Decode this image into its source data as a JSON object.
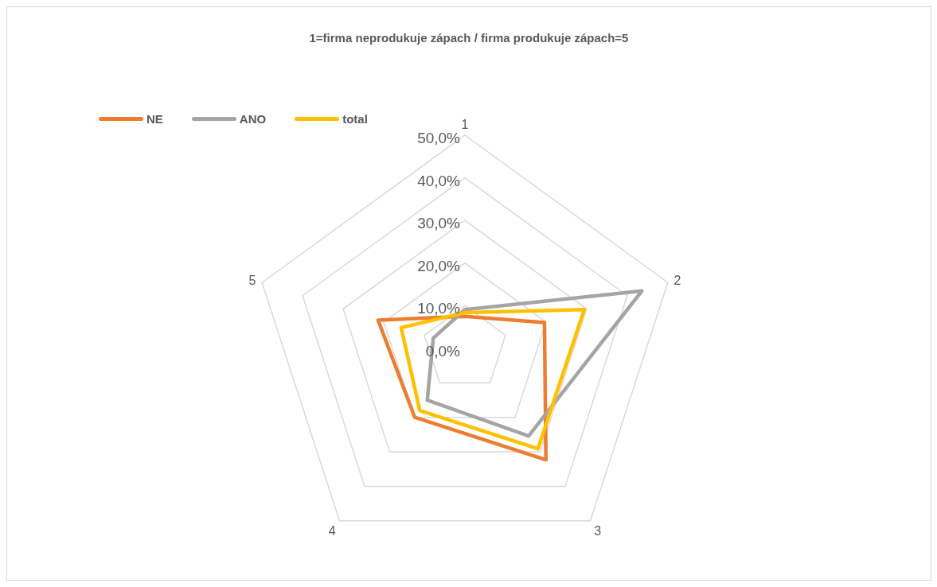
{
  "chart_data": {
    "type": "radar",
    "title": "1=firma neprodukuje zápach / firma produkuje zápach=5",
    "categories": [
      "1",
      "2",
      "3",
      "4",
      "5"
    ],
    "series": [
      {
        "name": "NE",
        "color": "#ed7d31",
        "values": [
          7.5,
          19.6,
          32.3,
          20.0,
          21.4
        ]
      },
      {
        "name": "ANO",
        "color": "#a5a5a5",
        "values": [
          9.1,
          43.6,
          25.4,
          15.0,
          7.8
        ]
      },
      {
        "name": "total",
        "color": "#ffc000",
        "values": [
          8.4,
          29.4,
          29.1,
          18.0,
          15.7
        ]
      }
    ],
    "ylim": [
      0,
      50
    ],
    "yticks": [
      {
        "value": 0,
        "label": "0,0%"
      },
      {
        "value": 10,
        "label": "10,0%"
      },
      {
        "value": 20,
        "label": "20,0%"
      },
      {
        "value": 30,
        "label": "30,0%"
      },
      {
        "value": 40,
        "label": "40,0%"
      },
      {
        "value": 50,
        "label": "50,0%"
      }
    ],
    "grid": true,
    "legend": "top left",
    "marker": "none",
    "line_style": "solid"
  }
}
